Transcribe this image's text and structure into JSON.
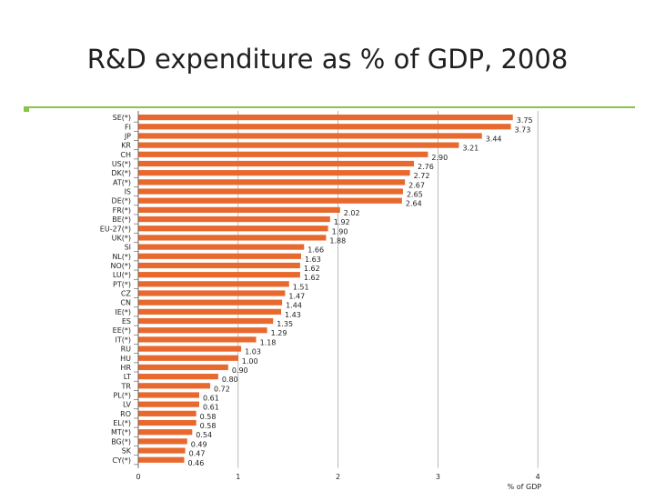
{
  "title": "R&D expenditure as % of GDP, 2008",
  "colors": {
    "bar": "#e8692e",
    "rule": "#8bc34a",
    "grid": "#9e9e9e"
  },
  "chart_data": {
    "type": "bar",
    "orientation": "horizontal",
    "categories": [
      "SE(*)",
      "FI",
      "JP",
      "KR",
      "CH",
      "US(*)",
      "DK(*)",
      "AT(*)",
      "IS",
      "DE(*)",
      "FR(*)",
      "BE(*)",
      "EU-27(*)",
      "UK(*)",
      "SI",
      "NL(*)",
      "NO(*)",
      "LU(*)",
      "PT(*)",
      "CZ",
      "CN",
      "IE(*)",
      "ES",
      "EE(*)",
      "IT(*)",
      "RU",
      "HU",
      "HR",
      "LT",
      "TR",
      "PL(*)",
      "LV",
      "RO",
      "EL(*)",
      "MT(*)",
      "BG(*)",
      "SK",
      "CY(*)"
    ],
    "values": [
      3.75,
      3.73,
      3.44,
      3.21,
      2.9,
      2.76,
      2.72,
      2.67,
      2.65,
      2.64,
      2.02,
      1.92,
      1.9,
      1.88,
      1.66,
      1.63,
      1.62,
      1.62,
      1.51,
      1.47,
      1.44,
      1.43,
      1.35,
      1.29,
      1.18,
      1.03,
      1.0,
      0.9,
      0.8,
      0.72,
      0.61,
      0.61,
      0.58,
      0.58,
      0.54,
      0.49,
      0.47,
      0.46
    ],
    "value_labels": [
      "3.75",
      "3.73",
      "3.44",
      "3.21",
      "2.90",
      "2.76",
      "2.72",
      "2.67",
      "2.65",
      "2.64",
      "2.02",
      "1.92",
      "1.90",
      "1.88",
      "1.66",
      "1.63",
      "1.62",
      "1.62",
      "1.51",
      "1.47",
      "1.44",
      "1.43",
      "1.35",
      "1.29",
      "1.18",
      "1.03",
      "1.00",
      "0.90",
      "0.80",
      "0.72",
      "0.61",
      "0.61",
      "0.58",
      "0.58",
      "0.54",
      "0.49",
      "0.47",
      "0.46"
    ],
    "xlim": [
      0,
      4
    ],
    "xticks": [
      "0",
      "1",
      "2",
      "3",
      "4"
    ],
    "xlabel": "% of GDP",
    "grid": true
  }
}
